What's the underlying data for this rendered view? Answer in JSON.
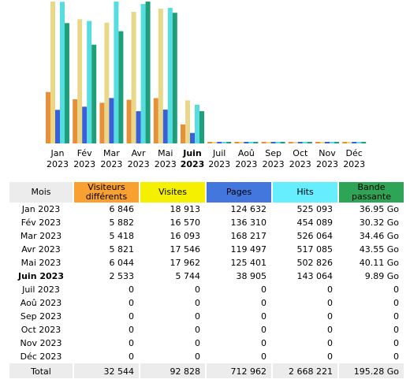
{
  "colors": {
    "visiteurs": "#e88f3a",
    "visites": "#e8d888",
    "pages": "#3a5fd8",
    "hits": "#55dde0",
    "bande": "#1e9f7a"
  },
  "table": {
    "headers": [
      "Mois",
      "Visiteurs différents",
      "Visites",
      "Pages",
      "Hits",
      "Bande passante"
    ],
    "rows": [
      {
        "mois": "Jan 2023",
        "visiteurs": "6 846",
        "visites": "18 913",
        "pages": "124 632",
        "hits": "525 093",
        "bande": "36.95 Go"
      },
      {
        "mois": "Fév 2023",
        "visiteurs": "5 882",
        "visites": "16 570",
        "pages": "136 310",
        "hits": "454 089",
        "bande": "30.32 Go"
      },
      {
        "mois": "Mar 2023",
        "visiteurs": "5 418",
        "visites": "16 093",
        "pages": "168 217",
        "hits": "526 064",
        "bande": "34.46 Go"
      },
      {
        "mois": "Avr 2023",
        "visiteurs": "5 821",
        "visites": "17 546",
        "pages": "119 497",
        "hits": "517 085",
        "bande": "43.55 Go"
      },
      {
        "mois": "Mai 2023",
        "visiteurs": "6 044",
        "visites": "17 962",
        "pages": "125 401",
        "hits": "502 826",
        "bande": "40.11 Go"
      },
      {
        "mois": "Juin 2023",
        "visiteurs": "2 533",
        "visites": "5 744",
        "pages": "38 905",
        "hits": "143 064",
        "bande": "9.89 Go"
      },
      {
        "mois": "Juil 2023",
        "visiteurs": "0",
        "visites": "0",
        "pages": "0",
        "hits": "0",
        "bande": "0"
      },
      {
        "mois": "Aoû 2023",
        "visiteurs": "0",
        "visites": "0",
        "pages": "0",
        "hits": "0",
        "bande": "0"
      },
      {
        "mois": "Sep 2023",
        "visiteurs": "0",
        "visites": "0",
        "pages": "0",
        "hits": "0",
        "bande": "0"
      },
      {
        "mois": "Oct 2023",
        "visiteurs": "0",
        "visites": "0",
        "pages": "0",
        "hits": "0",
        "bande": "0"
      },
      {
        "mois": "Nov 2023",
        "visiteurs": "0",
        "visites": "0",
        "pages": "0",
        "hits": "0",
        "bande": "0"
      },
      {
        "mois": "Déc 2023",
        "visiteurs": "0",
        "visites": "0",
        "pages": "0",
        "hits": "0",
        "bande": "0"
      }
    ],
    "total": {
      "mois": "Total",
      "visiteurs": "32 544",
      "visites": "92 828",
      "pages": "712 962",
      "hits": "2 668 221",
      "bande": "195.28 Go"
    }
  },
  "chart_data": {
    "type": "bar",
    "title": "",
    "categories": [
      [
        "Jan",
        "2023"
      ],
      [
        "Fév",
        "2023"
      ],
      [
        "Mar",
        "2023"
      ],
      [
        "Avr",
        "2023"
      ],
      [
        "Mai",
        "2023"
      ],
      [
        "Juin",
        "2023"
      ],
      [
        "Juil",
        "2023"
      ],
      [
        "Aoû",
        "2023"
      ],
      [
        "Sep",
        "2023"
      ],
      [
        "Oct",
        "2023"
      ],
      [
        "Nov",
        "2023"
      ],
      [
        "Déc",
        "2023"
      ]
    ],
    "current_month_index": 5,
    "series": [
      {
        "key": "visiteurs",
        "values": [
          6846,
          5882,
          5418,
          5821,
          6044,
          2533,
          0,
          0,
          0,
          0,
          0,
          0
        ]
      },
      {
        "key": "visites",
        "values": [
          18913,
          16570,
          16093,
          17546,
          17962,
          5744,
          0,
          0,
          0,
          0,
          0,
          0
        ]
      },
      {
        "key": "pages",
        "values": [
          124632,
          136310,
          168217,
          119497,
          125401,
          38905,
          0,
          0,
          0,
          0,
          0,
          0
        ]
      },
      {
        "key": "hits",
        "values": [
          525093,
          454089,
          526064,
          517085,
          502826,
          143064,
          0,
          0,
          0,
          0,
          0,
          0
        ]
      },
      {
        "key": "bande",
        "values": [
          36.95,
          30.32,
          34.46,
          43.55,
          40.11,
          9.89,
          0,
          0,
          0,
          0,
          0,
          0
        ]
      }
    ],
    "scales": {
      "visites": 18913,
      "pages": 526064,
      "bande": 43.55
    }
  }
}
